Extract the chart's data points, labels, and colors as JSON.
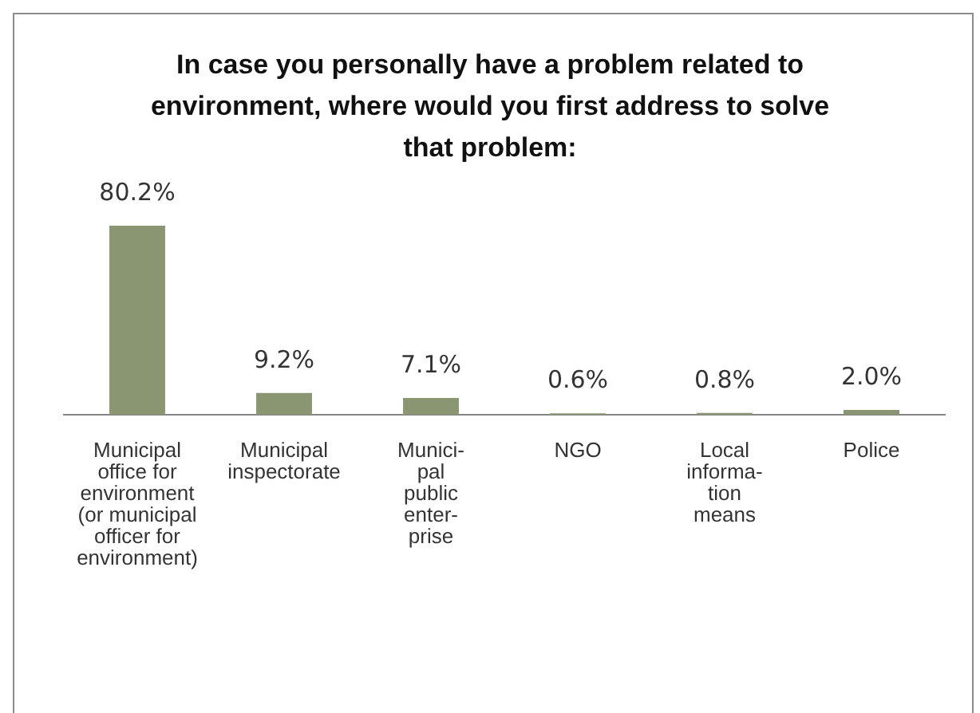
{
  "chart_data": {
    "type": "bar",
    "title": "In case you personally have a problem related to environment, where would you first address to solve that problem:",
    "categories": [
      "Municipal\noffice for\nenvironment\n(or municipal\nofficer for\nenvironment)",
      "Municipal\ninspectorate",
      "Munici-\npal\npublic\nenter-\nprise",
      "NGO",
      "Local\ninforma-\ntion\nmeans",
      "Police"
    ],
    "values": [
      80.2,
      9.2,
      7.1,
      0.6,
      0.8,
      2.0
    ],
    "value_labels": [
      "80.2%",
      "9.2%",
      "7.1%",
      "0.6%",
      "0.8%",
      "2.0%"
    ],
    "color": "#8a9672",
    "legend": false,
    "grid": false
  }
}
